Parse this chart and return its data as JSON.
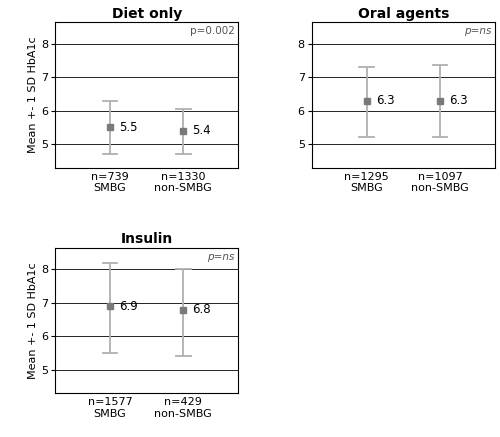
{
  "panels": [
    {
      "title": "Diet only",
      "p_text": "p=0.002",
      "groups": [
        {
          "label": "n=739\nSMBG",
          "mean": 5.5,
          "lower": 4.7,
          "upper": 6.3
        },
        {
          "label": "n=1330\nnon-SMBG",
          "mean": 5.4,
          "lower": 4.7,
          "upper": 6.05
        }
      ],
      "ylim": [
        4.3,
        8.65
      ],
      "yticks": [
        5,
        6,
        7,
        8
      ]
    },
    {
      "title": "Oral agents",
      "p_text": "p=ns",
      "groups": [
        {
          "label": "n=1295\nSMBG",
          "mean": 6.3,
          "lower": 5.2,
          "upper": 7.3
        },
        {
          "label": "n=1097\nnon-SMBG",
          "mean": 6.3,
          "lower": 5.2,
          "upper": 7.35
        }
      ],
      "ylim": [
        4.3,
        8.65
      ],
      "yticks": [
        5,
        6,
        7,
        8
      ]
    },
    {
      "title": "Insulin",
      "p_text": "p=ns",
      "groups": [
        {
          "label": "n=1577\nSMBG",
          "mean": 6.9,
          "lower": 5.5,
          "upper": 8.2
        },
        {
          "label": "n=429\nnon-SMBG",
          "mean": 6.8,
          "lower": 5.4,
          "upper": 8.0
        }
      ],
      "ylim": [
        4.3,
        8.65
      ],
      "yticks": [
        5,
        6,
        7,
        8
      ]
    }
  ],
  "ylabel": "Mean +- 1 SD HbA1c",
  "marker_color": "#7a7a7a",
  "error_color": "#b0b0b0",
  "title_fontsize": 10,
  "label_fontsize": 8,
  "tick_fontsize": 8,
  "p_fontsize": 7.5,
  "value_fontsize": 8.5,
  "ylabel_fontsize": 8
}
